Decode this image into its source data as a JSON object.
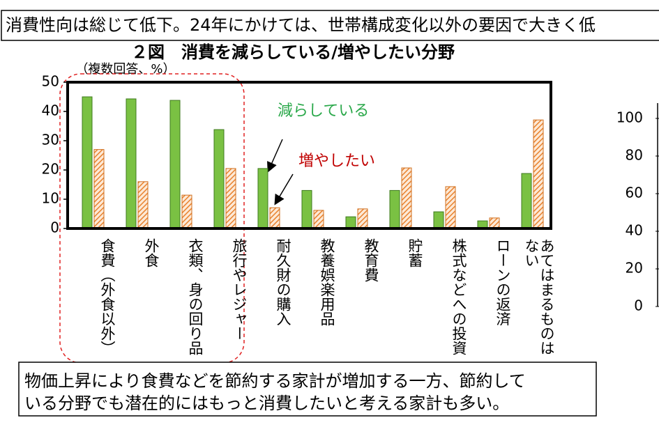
{
  "header": {
    "text": "消費性向は総じて低下。24年にかけては、世帯構成変化以外の要因で大きく低"
  },
  "chart_data": [
    {
      "type": "bar",
      "title": "２図　消費を減らしている/増やしたい分野",
      "subtitle": "（複数回答、%）",
      "categories": [
        "食費（外食以外）",
        "外食",
        "衣類、身の回り品",
        "旅行やレジャー",
        "耐久財の購入",
        "教養娯楽用品",
        "教育費",
        "貯蓄",
        "株式などへの投資",
        "ローンの返済",
        "あてはまるものはない"
      ],
      "series": [
        {
          "name": "減らしている",
          "color": "#7ac143",
          "values": [
            45,
            44.3,
            43.8,
            33.8,
            20.5,
            13,
            4,
            13,
            5.7,
            2.6,
            18.8
          ]
        },
        {
          "name": "増やしたい",
          "color": "#f0a050",
          "values": [
            27,
            16,
            11.4,
            20.5,
            7.1,
            6.2,
            6.7,
            20.7,
            14.3,
            3.6,
            37.1
          ]
        }
      ],
      "ylim": [
        0,
        50
      ],
      "yticks": [
        0,
        10,
        20,
        30,
        40,
        50
      ]
    },
    {
      "type": "line",
      "ylim": [
        0,
        100
      ],
      "yticks": [
        0,
        20,
        40,
        60,
        80,
        100
      ]
    }
  ],
  "note": {
    "lines": [
      "物価上昇により食費などを節約する家計が増加する一方、節約して",
      "いる分野でも潜在的にはもっと消費したいと考える家計も多い。"
    ]
  }
}
